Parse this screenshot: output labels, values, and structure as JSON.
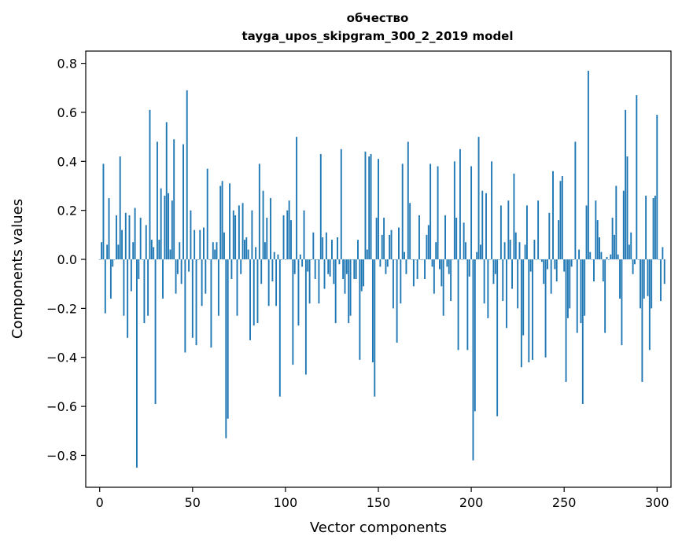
{
  "chart_data": {
    "type": "bar",
    "title": "обчество",
    "subtitle": "tayga_upos_skipgram_300_2_2019 model",
    "xlabel": "Vector components",
    "ylabel": "Components values",
    "xlim": [
      -7.5,
      307.5
    ],
    "ylim": [
      -0.93,
      0.85
    ],
    "xticks": [
      0,
      50,
      100,
      150,
      200,
      250,
      300
    ],
    "xtick_labels": [
      "0",
      "50",
      "100",
      "150",
      "200",
      "250",
      "300"
    ],
    "yticks": [
      -0.8,
      -0.6,
      -0.4,
      -0.2,
      0.0,
      0.2,
      0.4,
      0.6,
      0.8
    ],
    "ytick_labels": [
      "−0.8",
      "−0.6",
      "−0.4",
      "−0.2",
      "0.0",
      "0.2",
      "0.4",
      "0.6",
      "0.8"
    ],
    "bar_color": "#1f77b4",
    "grid": false,
    "values": [
      0.0,
      0.07,
      0.39,
      -0.22,
      0.06,
      0.25,
      -0.16,
      -0.03,
      0.0,
      0.18,
      0.06,
      0.42,
      0.12,
      -0.23,
      0.19,
      -0.32,
      0.18,
      -0.13,
      0.07,
      0.21,
      -0.85,
      -0.08,
      0.17,
      0.0,
      -0.26,
      0.14,
      -0.23,
      0.61,
      0.08,
      0.05,
      -0.59,
      0.48,
      0.08,
      0.29,
      -0.16,
      0.26,
      0.56,
      0.27,
      0.04,
      0.24,
      0.49,
      -0.14,
      -0.06,
      0.07,
      -0.1,
      0.47,
      -0.38,
      0.69,
      -0.05,
      0.2,
      -0.32,
      0.12,
      -0.35,
      0.0,
      0.12,
      -0.19,
      0.13,
      -0.14,
      0.37,
      0.0,
      -0.36,
      0.07,
      0.04,
      0.07,
      -0.23,
      0.3,
      0.32,
      0.11,
      -0.73,
      -0.65,
      0.31,
      -0.08,
      0.2,
      0.18,
      -0.23,
      0.22,
      -0.06,
      0.23,
      0.08,
      0.09,
      0.04,
      -0.33,
      0.2,
      -0.27,
      0.05,
      -0.26,
      0.39,
      -0.1,
      0.28,
      0.07,
      0.17,
      -0.19,
      0.25,
      -0.09,
      0.03,
      -0.19,
      0.02,
      -0.56,
      0.0,
      0.18,
      0.0,
      0.2,
      0.24,
      0.16,
      -0.43,
      -0.06,
      0.5,
      -0.27,
      0.02,
      -0.03,
      0.2,
      -0.47,
      -0.05,
      -0.18,
      0.0,
      0.11,
      -0.08,
      0.0,
      -0.18,
      0.43,
      0.09,
      -0.12,
      0.11,
      -0.06,
      -0.07,
      0.08,
      -0.1,
      -0.26,
      0.09,
      -0.02,
      0.45,
      -0.08,
      -0.14,
      -0.06,
      -0.26,
      -0.23,
      0.0,
      -0.08,
      -0.08,
      0.08,
      -0.41,
      -0.13,
      -0.11,
      0.44,
      0.04,
      0.42,
      0.43,
      -0.42,
      -0.56,
      0.17,
      0.41,
      -0.03,
      0.1,
      0.17,
      -0.06,
      -0.03,
      0.1,
      0.12,
      -0.2,
      0.0,
      -0.34,
      0.13,
      -0.18,
      0.39,
      0.03,
      -0.06,
      0.48,
      0.23,
      0.0,
      -0.11,
      0.0,
      -0.08,
      0.18,
      0.0,
      0.0,
      -0.08,
      0.1,
      0.14,
      0.39,
      -0.03,
      -0.14,
      0.07,
      0.38,
      -0.04,
      -0.11,
      -0.23,
      0.18,
      -0.03,
      -0.06,
      -0.17,
      0.0,
      0.4,
      0.17,
      -0.37,
      0.45,
      0.0,
      0.15,
      0.07,
      -0.37,
      -0.07,
      0.38,
      -0.82,
      -0.62,
      0.03,
      0.5,
      0.06,
      0.28,
      -0.18,
      0.27,
      -0.24,
      0.0,
      0.4,
      -0.1,
      -0.06,
      -0.64,
      0.0,
      0.22,
      -0.17,
      0.07,
      -0.28,
      0.24,
      0.08,
      -0.12,
      0.35,
      0.11,
      -0.2,
      0.07,
      -0.44,
      -0.31,
      0.06,
      0.22,
      -0.42,
      -0.05,
      -0.41,
      0.08,
      0.0,
      0.24,
      0.0,
      -0.01,
      -0.1,
      -0.4,
      -0.04,
      0.19,
      -0.14,
      0.36,
      -0.04,
      -0.09,
      0.16,
      0.32,
      0.34,
      -0.05,
      -0.5,
      -0.24,
      -0.2,
      -0.03,
      0.0,
      0.48,
      -0.3,
      0.04,
      -0.26,
      -0.59,
      -0.23,
      0.22,
      0.77,
      0.03,
      0.0,
      -0.09,
      0.24,
      0.16,
      0.09,
      0.03,
      -0.09,
      -0.3,
      0.01,
      0.0,
      0.02,
      0.17,
      0.1,
      0.3,
      0.02,
      -0.16,
      -0.35,
      0.28,
      0.61,
      0.42,
      0.06,
      0.11,
      -0.06,
      -0.02,
      0.67,
      0.0,
      -0.2,
      -0.5,
      -0.16,
      0.26,
      -0.15,
      -0.37,
      -0.2,
      0.25,
      0.26,
      0.59,
      0.0,
      -0.17,
      0.05,
      -0.1
    ]
  }
}
